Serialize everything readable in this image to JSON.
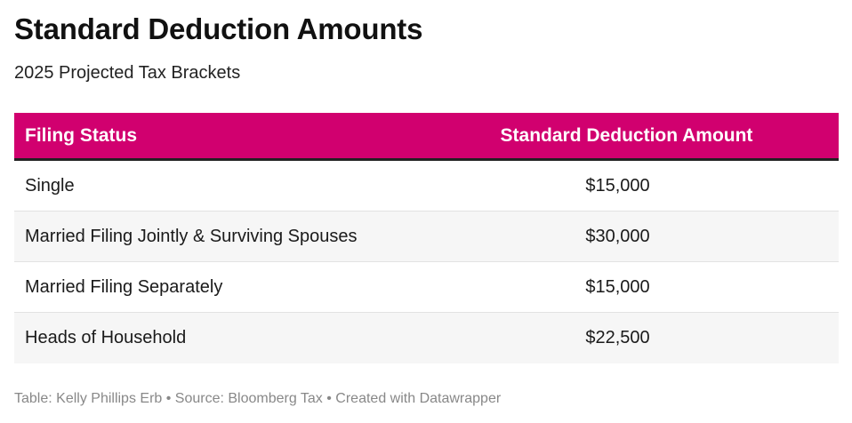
{
  "chart_data": {
    "type": "table",
    "title": "Standard Deduction Amounts",
    "subtitle": "2025 Projected Tax Brackets",
    "columns": [
      "Filing Status",
      "Standard Deduction Amount"
    ],
    "rows": [
      {
        "status": "Single",
        "amount": "$15,000"
      },
      {
        "status": "Married Filing Jointly & Surviving Spouses",
        "amount": "$30,000"
      },
      {
        "status": "Married Filing Separately",
        "amount": "$15,000"
      },
      {
        "status": "Heads of Household",
        "amount": "$22,500"
      }
    ],
    "footer": "Table: Kelly Phillips Erb • Source: Bloomberg Tax • Created with Datawrapper",
    "header_color": "#d1006f",
    "alt_row_color": "#f6f6f6"
  }
}
